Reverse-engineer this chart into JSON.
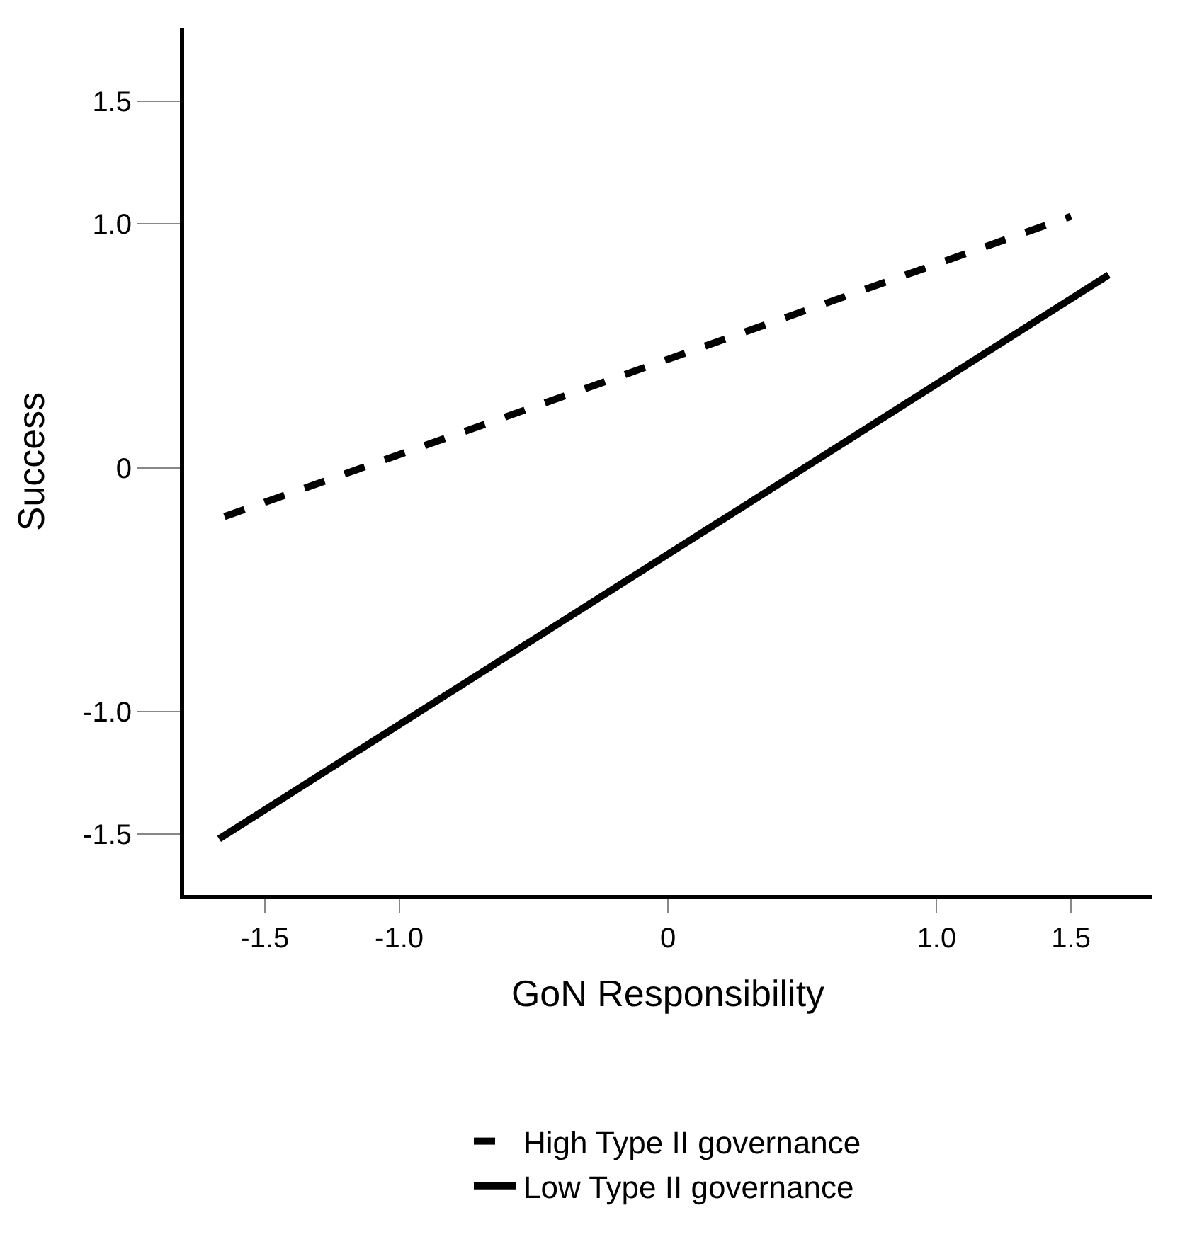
{
  "chart_data": {
    "type": "line",
    "xlabel": "GoN Responsibility",
    "ylabel": "Success",
    "xlim": [
      -1.8,
      1.8
    ],
    "ylim": [
      -1.75,
      1.8
    ],
    "xticks": [
      {
        "value": -1.5,
        "label": "-1.5"
      },
      {
        "value": -1.0,
        "label": "-1.0"
      },
      0,
      {
        "value": 1.0,
        "label": "1.0"
      },
      {
        "value": 1.5,
        "label": "1.5"
      }
    ],
    "yticks": [
      {
        "value": -1.5,
        "label": "-1.5"
      },
      {
        "value": -1.0,
        "label": "-1.0"
      },
      0,
      {
        "value": 1.0,
        "label": "1.0"
      },
      {
        "value": 1.5,
        "label": "1.5"
      }
    ],
    "grid": false,
    "legend": "bottom",
    "marker": "none",
    "series": [
      {
        "name": "High Type II governance",
        "color": "#000000",
        "line_style": "dashed",
        "x": [
          -1.65,
          1.5
        ],
        "values": [
          -0.2,
          1.03
        ]
      },
      {
        "name": "Low Type II governance",
        "color": "#000000",
        "line_style": "solid",
        "x": [
          -1.67,
          1.64
        ],
        "values": [
          -1.52,
          0.79
        ]
      }
    ]
  }
}
